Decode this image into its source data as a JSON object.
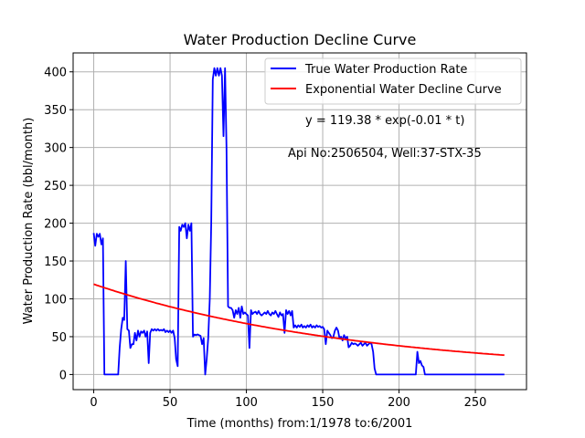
{
  "chart_data": {
    "type": "line",
    "title": "Water Production Decline Curve",
    "xlabel": "Time (months) from:1/1978 to:6/2001",
    "ylabel": "Water Production Rate (bbl/month)",
    "xlim": [
      -13.5,
      283.5
    ],
    "ylim": [
      -20,
      425
    ],
    "xticks": [
      0,
      50,
      100,
      150,
      200,
      250
    ],
    "yticks": [
      0,
      50,
      100,
      150,
      200,
      250,
      300,
      350,
      400
    ],
    "grid": true,
    "legend_position": "top-right",
    "annotations": [
      "y = 119.38 * exp(-0.01 * t)",
      "Api No:2506504, Well:37-STX-35"
    ],
    "series": [
      {
        "name": "True Water Production Rate",
        "color": "#0000ff",
        "points": [
          [
            0,
            187
          ],
          [
            1,
            170
          ],
          [
            2,
            186
          ],
          [
            3,
            182
          ],
          [
            4,
            186
          ],
          [
            5,
            172
          ],
          [
            6,
            180
          ],
          [
            7,
            0
          ],
          [
            8,
            0
          ],
          [
            9,
            0
          ],
          [
            10,
            0
          ],
          [
            11,
            0
          ],
          [
            12,
            0
          ],
          [
            13,
            0
          ],
          [
            14,
            0
          ],
          [
            15,
            0
          ],
          [
            16,
            0
          ],
          [
            17,
            35
          ],
          [
            18,
            60
          ],
          [
            19,
            75
          ],
          [
            20,
            72
          ],
          [
            21,
            150
          ],
          [
            22,
            60
          ],
          [
            23,
            58
          ],
          [
            24,
            35
          ],
          [
            25,
            40
          ],
          [
            26,
            40
          ],
          [
            27,
            55
          ],
          [
            28,
            45
          ],
          [
            29,
            58
          ],
          [
            30,
            50
          ],
          [
            31,
            57
          ],
          [
            32,
            55
          ],
          [
            33,
            58
          ],
          [
            34,
            50
          ],
          [
            35,
            57
          ],
          [
            36,
            15
          ],
          [
            37,
            55
          ],
          [
            38,
            60
          ],
          [
            39,
            58
          ],
          [
            40,
            60
          ],
          [
            41,
            58
          ],
          [
            42,
            60
          ],
          [
            43,
            58
          ],
          [
            44,
            59
          ],
          [
            45,
            58
          ],
          [
            46,
            60
          ],
          [
            47,
            56
          ],
          [
            48,
            58
          ],
          [
            49,
            56
          ],
          [
            50,
            58
          ],
          [
            51,
            55
          ],
          [
            52,
            58
          ],
          [
            53,
            48
          ],
          [
            54,
            20
          ],
          [
            55,
            11
          ],
          [
            56,
            195
          ],
          [
            57,
            190
          ],
          [
            58,
            198
          ],
          [
            59,
            195
          ],
          [
            60,
            200
          ],
          [
            61,
            180
          ],
          [
            62,
            198
          ],
          [
            63,
            190
          ],
          [
            64,
            200
          ],
          [
            65,
            50
          ],
          [
            66,
            53
          ],
          [
            67,
            52
          ],
          [
            68,
            53
          ],
          [
            69,
            52
          ],
          [
            70,
            51
          ],
          [
            71,
            40
          ],
          [
            72,
            48
          ],
          [
            73,
            0
          ],
          [
            74,
            20
          ],
          [
            75,
            48
          ],
          [
            76,
            100
          ],
          [
            77,
            200
          ],
          [
            78,
            390
          ],
          [
            79,
            405
          ],
          [
            80,
            395
          ],
          [
            81,
            405
          ],
          [
            82,
            395
          ],
          [
            83,
            405
          ],
          [
            84,
            395
          ],
          [
            85,
            315
          ],
          [
            86,
            405
          ],
          [
            87,
            300
          ],
          [
            88,
            90
          ],
          [
            89,
            88
          ],
          [
            90,
            88
          ],
          [
            91,
            85
          ],
          [
            92,
            75
          ],
          [
            93,
            85
          ],
          [
            94,
            80
          ],
          [
            95,
            88
          ],
          [
            96,
            75
          ],
          [
            97,
            90
          ],
          [
            98,
            80
          ],
          [
            99,
            82
          ],
          [
            100,
            80
          ],
          [
            101,
            78
          ],
          [
            102,
            35
          ],
          [
            103,
            85
          ],
          [
            104,
            80
          ],
          [
            105,
            82
          ],
          [
            106,
            83
          ],
          [
            107,
            80
          ],
          [
            108,
            84
          ],
          [
            109,
            80
          ],
          [
            110,
            78
          ],
          [
            111,
            80
          ],
          [
            112,
            82
          ],
          [
            113,
            80
          ],
          [
            114,
            84
          ],
          [
            115,
            80
          ],
          [
            116,
            78
          ],
          [
            117,
            82
          ],
          [
            118,
            80
          ],
          [
            119,
            84
          ],
          [
            120,
            80
          ],
          [
            121,
            76
          ],
          [
            122,
            82
          ],
          [
            123,
            78
          ],
          [
            124,
            80
          ],
          [
            125,
            55
          ],
          [
            126,
            85
          ],
          [
            127,
            80
          ],
          [
            128,
            84
          ],
          [
            129,
            78
          ],
          [
            130,
            84
          ],
          [
            131,
            62
          ],
          [
            132,
            65
          ],
          [
            133,
            62
          ],
          [
            134,
            65
          ],
          [
            135,
            63
          ],
          [
            136,
            66
          ],
          [
            137,
            62
          ],
          [
            138,
            64
          ],
          [
            139,
            62
          ],
          [
            140,
            65
          ],
          [
            141,
            63
          ],
          [
            142,
            66
          ],
          [
            143,
            62
          ],
          [
            144,
            64
          ],
          [
            145,
            62
          ],
          [
            146,
            65
          ],
          [
            147,
            63
          ],
          [
            148,
            64
          ],
          [
            149,
            62
          ],
          [
            150,
            63
          ],
          [
            151,
            60
          ],
          [
            152,
            40
          ],
          [
            153,
            58
          ],
          [
            154,
            55
          ],
          [
            155,
            52
          ],
          [
            156,
            48
          ],
          [
            157,
            50
          ],
          [
            158,
            58
          ],
          [
            159,
            62
          ],
          [
            160,
            58
          ],
          [
            161,
            48
          ],
          [
            162,
            50
          ],
          [
            163,
            45
          ],
          [
            164,
            52
          ],
          [
            165,
            48
          ],
          [
            166,
            50
          ],
          [
            167,
            36
          ],
          [
            168,
            38
          ],
          [
            169,
            42
          ],
          [
            170,
            40
          ],
          [
            171,
            41
          ],
          [
            172,
            40
          ],
          [
            173,
            38
          ],
          [
            174,
            40
          ],
          [
            175,
            42
          ],
          [
            176,
            38
          ],
          [
            177,
            40
          ],
          [
            178,
            42
          ],
          [
            179,
            38
          ],
          [
            180,
            40
          ],
          [
            181,
            42
          ],
          [
            182,
            40
          ],
          [
            183,
            30
          ],
          [
            184,
            8
          ],
          [
            185,
            0
          ],
          [
            186,
            0
          ],
          [
            190,
            0
          ],
          [
            195,
            0
          ],
          [
            200,
            0
          ],
          [
            205,
            0
          ],
          [
            210,
            0
          ],
          [
            211,
            0
          ],
          [
            212,
            30
          ],
          [
            213,
            15
          ],
          [
            214,
            18
          ],
          [
            215,
            12
          ],
          [
            216,
            10
          ],
          [
            217,
            0
          ],
          [
            218,
            0
          ],
          [
            225,
            0
          ],
          [
            235,
            0
          ],
          [
            245,
            0
          ],
          [
            255,
            0
          ],
          [
            265,
            0
          ],
          [
            269,
            0
          ]
        ]
      },
      {
        "name": "Exponential Water Decline Curve",
        "color": "#ff0000",
        "model": {
          "a": 119.38,
          "b": -0.00573,
          "t_start": 0,
          "t_end": 269
        }
      }
    ]
  }
}
